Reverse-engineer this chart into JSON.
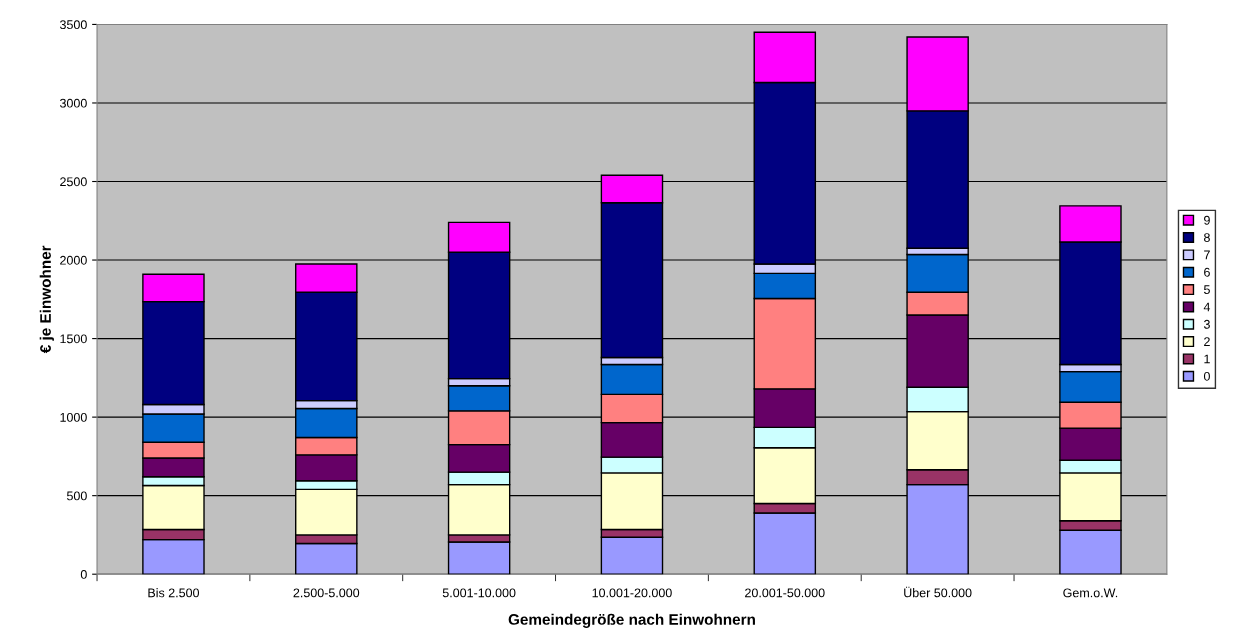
{
  "chart_data": {
    "type": "bar",
    "stacked": true,
    "xlabel": "Gemeindegröße nach Einwohnern",
    "ylabel": "€ je Einwohner",
    "categories": [
      "Bis 2.500",
      "2.500-5.000",
      "5.001-10.000",
      "10.001-20.000",
      "20.001-50.000",
      "Über 50.000",
      "Gem.o.W."
    ],
    "series": [
      {
        "name": "0",
        "color": "#9999ff",
        "values": [
          220,
          195,
          205,
          235,
          390,
          570,
          280
        ]
      },
      {
        "name": "1",
        "color": "#993366",
        "values": [
          65,
          55,
          45,
          50,
          60,
          95,
          60
        ]
      },
      {
        "name": "2",
        "color": "#ffffcc",
        "values": [
          280,
          290,
          320,
          360,
          355,
          370,
          305
        ]
      },
      {
        "name": "3",
        "color": "#ccffff",
        "values": [
          55,
          55,
          80,
          100,
          130,
          155,
          80
        ]
      },
      {
        "name": "4",
        "color": "#660066",
        "values": [
          120,
          165,
          175,
          220,
          245,
          460,
          205
        ]
      },
      {
        "name": "5",
        "color": "#ff8080",
        "values": [
          100,
          110,
          215,
          180,
          575,
          145,
          165
        ]
      },
      {
        "name": "6",
        "color": "#0066cc",
        "values": [
          180,
          185,
          160,
          190,
          160,
          240,
          195
        ]
      },
      {
        "name": "7",
        "color": "#ccccff",
        "values": [
          60,
          50,
          45,
          45,
          60,
          40,
          45
        ]
      },
      {
        "name": "8",
        "color": "#000080",
        "values": [
          655,
          690,
          805,
          985,
          1155,
          875,
          780
        ]
      },
      {
        "name": "9",
        "color": "#ff00ff",
        "values": [
          175,
          180,
          190,
          175,
          320,
          470,
          230
        ]
      }
    ],
    "ylim": [
      0,
      3500
    ],
    "yticks": [
      0,
      500,
      1000,
      1500,
      2000,
      2500,
      3000,
      3500
    ],
    "grid": "y",
    "legend": "right"
  }
}
